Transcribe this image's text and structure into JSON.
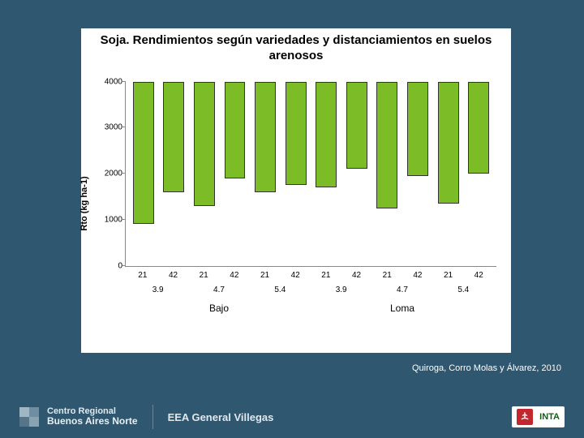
{
  "title": "Soja. Rendimientos según variedades y distanciamientos en suelos arenosos",
  "citation": "Quiroga, Corro Molas y Álvarez, 2010",
  "footer": {
    "region_l1": "Centro Regional",
    "region_l2": "Buenos Aires Norte",
    "station": "EEA General Villegas",
    "inta": "INTA"
  },
  "chart": {
    "type": "bar",
    "ylabel": "Rto (kg ha-1)",
    "ylim": [
      0,
      4000
    ],
    "yticks": [
      0,
      1000,
      2000,
      3000,
      4000
    ],
    "bar_color": "#7cbd27",
    "bar_border": "#333333",
    "background": "#ffffff",
    "axis_color": "#888888",
    "label_fontsize": 10,
    "title_fontsize": 15,
    "distances": [
      "21",
      "42",
      "21",
      "42",
      "21",
      "42",
      "21",
      "42",
      "21",
      "42",
      "21",
      "42"
    ],
    "varieties": [
      "3.9",
      "4.7",
      "5.4",
      "3.9",
      "4.7",
      "5.4"
    ],
    "terrains": [
      "Bajo",
      "Loma"
    ],
    "values": [
      3100,
      2400,
      2700,
      2100,
      2400,
      2250,
      2300,
      1900,
      2750,
      2050,
      2650,
      2000
    ]
  }
}
